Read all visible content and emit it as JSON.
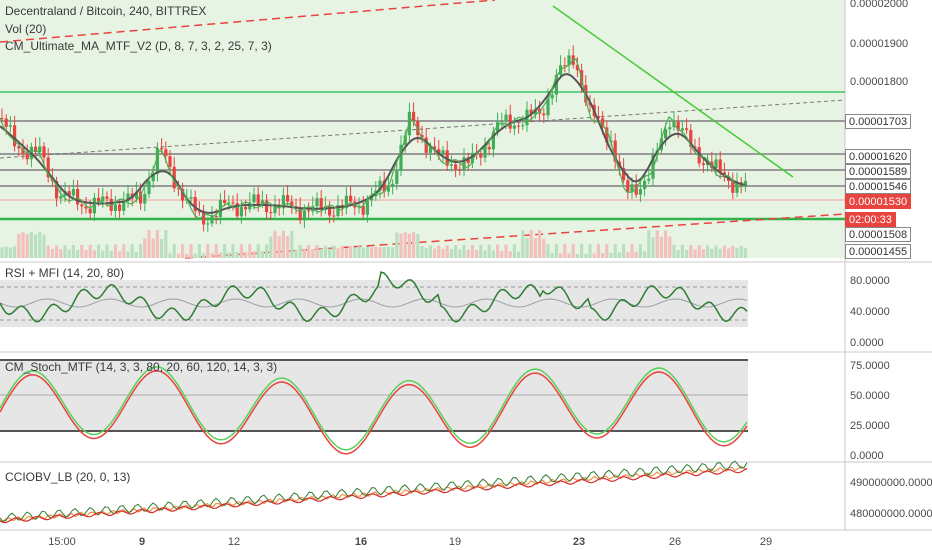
{
  "symbol": {
    "title": "Decentraland / Bitcoin, 240, BITTREX",
    "vol_label": "Vol (20)",
    "ma_label": "CM_Ultimate_MA_MTF_V2 (D, 8, 7, 3, 2, 25, 7, 3)"
  },
  "panes": {
    "rsi_label": "RSI + MFI (14, 20, 80)",
    "stoch_label": "CM_Stoch_MTF (14, 3, 3, 80, 20, 60, 120, 14, 3, 3)",
    "cciobv_label": "CCIOBV_LB (20, 0, 13)"
  },
  "price_axis": [
    "0.00002000",
    "0.00001900",
    "0.00001800"
  ],
  "price_tags": [
    {
      "text": "0.00001703",
      "bg": "#ffffff",
      "fg": "#333333",
      "border": "#888888"
    },
    {
      "text": "0.00001620",
      "bg": "#ffffff",
      "fg": "#333333",
      "border": "#888888"
    },
    {
      "text": "0.00001589",
      "bg": "#ffffff",
      "fg": "#333333",
      "border": "#888888"
    },
    {
      "text": "0.00001546",
      "bg": "#ffffff",
      "fg": "#333333",
      "border": "#888888"
    },
    {
      "text": "0.00001530",
      "bg": "#e8433f",
      "fg": "#ffffff",
      "border": "#e8433f"
    },
    {
      "text": "02:00:33",
      "bg": "#e8433f",
      "fg": "#ffffff",
      "border": "#e8433f"
    },
    {
      "text": "0.00001508",
      "bg": "#ffffff",
      "fg": "#333333",
      "border": "#888888"
    },
    {
      "text": "0.00001455",
      "bg": "#ffffff",
      "fg": "#333333",
      "border": "#888888"
    }
  ],
  "rsi_axis": [
    "80.0000",
    "40.0000",
    "0.0000"
  ],
  "stoch_axis": [
    "75.0000",
    "50.0000",
    "25.0000",
    "0.0000"
  ],
  "cci_axis": [
    "490000000.0000",
    "480000000.0000"
  ],
  "time_axis": [
    {
      "label": "15:00",
      "bold": false
    },
    {
      "label": "9",
      "bold": true
    },
    {
      "label": "12",
      "bold": false
    },
    {
      "label": "16",
      "bold": true
    },
    {
      "label": "19",
      "bold": false
    },
    {
      "label": "23",
      "bold": true
    },
    {
      "label": "26",
      "bold": false
    },
    {
      "label": "29",
      "bold": false
    }
  ],
  "colors": {
    "up": "#3fae58",
    "down": "#e8433f",
    "ma_dark": "#555555",
    "ma_green": "#4caf50",
    "bg_green": "#e8f4e3",
    "band_gray": "#e6e6e6"
  }
}
